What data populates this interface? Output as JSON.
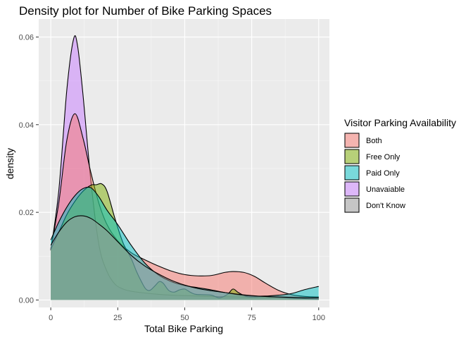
{
  "chart_data": {
    "type": "area",
    "title": "Density plot for Number of Bike Parking Spaces",
    "xlabel": "Total Bike Parking",
    "ylabel": "density",
    "xlim": [
      -4.5,
      104
    ],
    "ylim": [
      -0.0017,
      0.0641
    ],
    "x_ticks": [
      0,
      25,
      50,
      75,
      100
    ],
    "y_ticks": [
      0.0,
      0.02,
      0.04,
      0.06
    ],
    "x_tick_labels": [
      "0",
      "25",
      "50",
      "75",
      "100"
    ],
    "y_tick_labels": [
      "0.00",
      "0.02",
      "0.04",
      "0.06"
    ],
    "grid": true,
    "legend_title": "Visitor Parking Availability",
    "legend_position": "right",
    "series": [
      {
        "name": "Unavaiable",
        "color": "#C77CFF",
        "x": [
          0,
          3,
          6,
          8.5,
          10,
          12,
          15,
          18,
          21,
          24,
          27,
          30,
          35,
          40,
          45,
          50,
          55,
          60,
          70,
          80,
          90,
          100
        ],
        "y": [
          0.0113,
          0.025,
          0.048,
          0.0595,
          0.058,
          0.047,
          0.027,
          0.0125,
          0.0065,
          0.0036,
          0.0025,
          0.002,
          0.0016,
          0.0013,
          0.0011,
          0.001,
          0.0009,
          0.0008,
          0.0007,
          0.0006,
          0.0006,
          0.0005
        ]
      },
      {
        "name": "Both",
        "color": "#F8766D",
        "x": [
          0,
          3,
          6,
          9,
          12,
          15,
          18,
          21,
          25,
          30,
          35,
          40,
          45,
          50,
          55,
          60,
          65,
          68,
          72,
          76,
          80,
          85,
          90,
          95,
          100
        ],
        "y": [
          0.0117,
          0.0222,
          0.0365,
          0.0425,
          0.037,
          0.029,
          0.022,
          0.0172,
          0.0135,
          0.0108,
          0.0092,
          0.0078,
          0.0066,
          0.0058,
          0.0055,
          0.0056,
          0.0063,
          0.0065,
          0.0063,
          0.0054,
          0.0039,
          0.0022,
          0.0012,
          0.0008,
          0.0007
        ]
      },
      {
        "name": "Free Only",
        "color": "#7CAE00",
        "x": [
          0,
          3,
          6,
          9,
          12,
          15,
          17,
          19,
          21,
          24,
          27,
          30,
          32,
          34,
          35.5,
          37,
          39,
          40.5,
          42,
          44,
          46,
          48,
          50,
          52,
          54,
          57,
          60,
          63,
          66,
          68,
          70,
          73,
          76,
          80,
          85,
          90,
          95,
          100
        ],
        "y": [
          0.0115,
          0.0155,
          0.0195,
          0.0225,
          0.0248,
          0.0262,
          0.0263,
          0.0265,
          0.0248,
          0.0185,
          0.013,
          0.0095,
          0.0065,
          0.004,
          0.0025,
          0.0022,
          0.0033,
          0.0042,
          0.0038,
          0.0022,
          0.0018,
          0.0023,
          0.0025,
          0.0018,
          0.0013,
          0.0012,
          0.0011,
          0.0005,
          0.0013,
          0.0025,
          0.0017,
          0.0008,
          0.0007,
          0.0008,
          0.0006,
          0.0004,
          0.0003,
          0.0002
        ]
      },
      {
        "name": "Paid Only",
        "color": "#00BFC4",
        "x": [
          0,
          3,
          6,
          9,
          12,
          15,
          18,
          21,
          25,
          30,
          35,
          40,
          45,
          50,
          55,
          60,
          65,
          70,
          75,
          80,
          85,
          90,
          95,
          100
        ],
        "y": [
          0.0137,
          0.0178,
          0.0212,
          0.0238,
          0.0254,
          0.0256,
          0.0235,
          0.0205,
          0.0172,
          0.0125,
          0.0085,
          0.0058,
          0.0042,
          0.0033,
          0.0028,
          0.0023,
          0.0017,
          0.0012,
          0.0009,
          0.0009,
          0.0011,
          0.0015,
          0.0024,
          0.0031
        ]
      },
      {
        "name": "Don't Know",
        "color": "#999999",
        "x": [
          0,
          3,
          6,
          9,
          12,
          15,
          18,
          21,
          25,
          30,
          35,
          40,
          45,
          50,
          55,
          60,
          65,
          70,
          75,
          80,
          85,
          90,
          95,
          100
        ],
        "y": [
          0.0125,
          0.0155,
          0.0178,
          0.019,
          0.0192,
          0.0186,
          0.0173,
          0.0158,
          0.0133,
          0.0102,
          0.0078,
          0.006,
          0.0045,
          0.0034,
          0.0026,
          0.0021,
          0.0017,
          0.0013,
          0.001,
          0.0008,
          0.0007,
          0.0006,
          0.0005,
          0.0005
        ]
      }
    ]
  }
}
